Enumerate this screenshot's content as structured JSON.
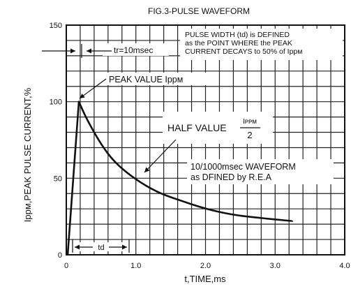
{
  "chart_data": {
    "type": "line",
    "title": "FIG.3-PULSE WAVEFORM",
    "xlabel": "t,TIME,ms",
    "ylabel": "Ippᴍ,PEAK PULSE CURRENT,%",
    "xlim": [
      0,
      4.0
    ],
    "ylim": [
      0,
      150
    ],
    "x_ticks": [
      "0",
      "1.0",
      "2.0",
      "3.0",
      "4.0"
    ],
    "y_ticks": [
      "0",
      "50",
      "100",
      "150"
    ],
    "grid": true,
    "series": [
      {
        "x": [
          0.02,
          0.18,
          0.3,
          0.5,
          0.7,
          1.0,
          1.3,
          1.6,
          2.0,
          2.4,
          2.8,
          3.25
        ],
        "y": [
          0,
          100,
          88,
          72,
          60,
          49,
          41,
          36,
          30,
          26,
          24,
          22
        ]
      }
    ],
    "annotations": {
      "rise_time": "tr=10msec",
      "peak_value": "PEAK VALUE Ippᴍ",
      "half_value": "HALF VALUE",
      "half_value_fraction_numerator": "Iᴘᴘᴍ",
      "half_value_fraction_denominator": "2",
      "pulse_width_note": [
        "PULSE WIDTH (td) is DEFINED",
        "as the POINT WHERE the PEAK",
        "CURRENT DECAYS to 50% of Ippᴍ"
      ],
      "waveform_note": [
        "10/1000msec WAVEFORM",
        "as DFINED by R.E.A"
      ],
      "td_label": "td"
    }
  }
}
